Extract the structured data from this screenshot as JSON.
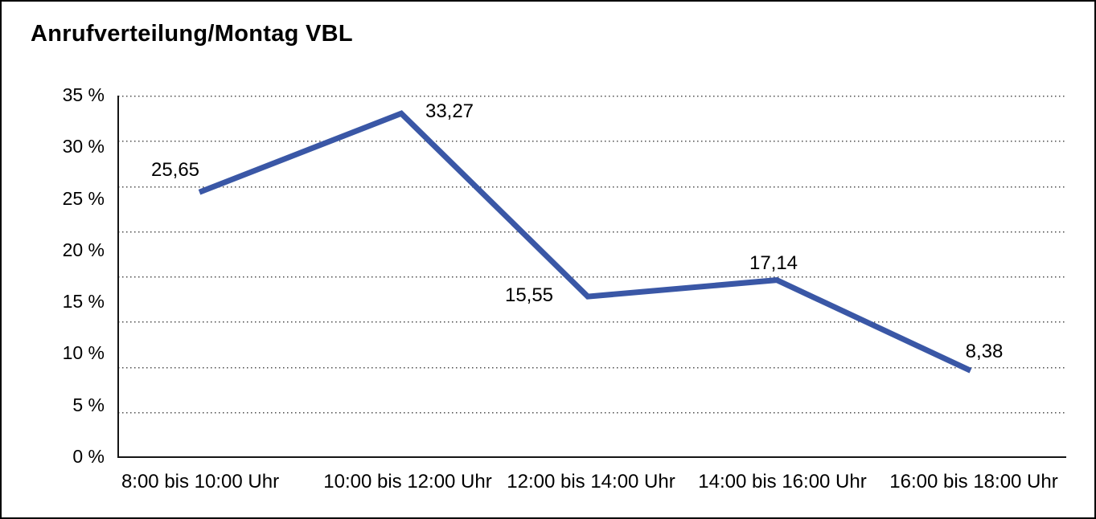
{
  "title": "Anrufverteilung/Montag VBL",
  "chart_data": {
    "type": "line",
    "title": "Anrufverteilung/Montag VBL",
    "categories": [
      "8:00 bis 10:00 Uhr",
      "10:00 bis 12:00 Uhr",
      "12:00 bis 14:00 Uhr",
      "14:00 bis 16:00 Uhr",
      "16:00 bis 18:00 Uhr"
    ],
    "values": [
      25.65,
      33.27,
      15.55,
      17.14,
      8.38
    ],
    "value_labels": [
      "25,65",
      "33,27",
      "15,55",
      "17,14",
      "8,38"
    ],
    "y_ticks": [
      {
        "value": 35,
        "label": "35 %"
      },
      {
        "value": 30,
        "label": "30 %"
      },
      {
        "value": 25,
        "label": "25 %"
      },
      {
        "value": 20,
        "label": "20 %"
      },
      {
        "value": 15,
        "label": "15 %"
      },
      {
        "value": 10,
        "label": "10 %"
      },
      {
        "value": 5,
        "label": "5 %"
      },
      {
        "value": 0,
        "label": "0 %"
      }
    ],
    "xlabel": "",
    "ylabel": "",
    "ylim": [
      0,
      35
    ],
    "grid": "horizontal-dotted",
    "legend": "none",
    "line_color": "#3A57A6",
    "axis_color": "#151515",
    "background_color": "#FFFFFF",
    "frame_border_color": "#000000"
  }
}
